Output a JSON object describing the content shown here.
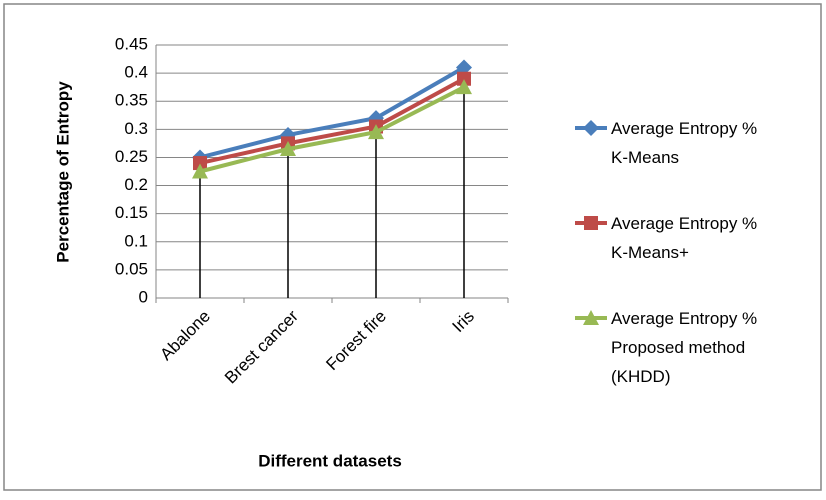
{
  "chart_data": {
    "type": "line",
    "x_label": "Different datasets",
    "y_label": "Percentage of Entropy",
    "categories": [
      "Abalone",
      "Brest cancer",
      "Forest fire",
      "Iris"
    ],
    "series": [
      {
        "name": "Average Entropy % K-Means",
        "color": "#4a7ebb",
        "marker": "diamond",
        "values": [
          0.25,
          0.29,
          0.32,
          0.41
        ]
      },
      {
        "name": "Average Entropy % K-Means+",
        "color": "#be4b48",
        "marker": "square",
        "values": [
          0.24,
          0.275,
          0.305,
          0.39
        ]
      },
      {
        "name": "Average Entropy % Proposed method (KHDD)",
        "color": "#98b954",
        "marker": "triangle",
        "values": [
          0.225,
          0.265,
          0.295,
          0.375
        ]
      }
    ],
    "ylim": [
      0,
      0.45
    ],
    "yticks": [
      0,
      0.05,
      0.1,
      0.15,
      0.2,
      0.25,
      0.3,
      0.35,
      0.4,
      0.45
    ],
    "grid": true,
    "drop_lines": true,
    "legend": "right"
  }
}
